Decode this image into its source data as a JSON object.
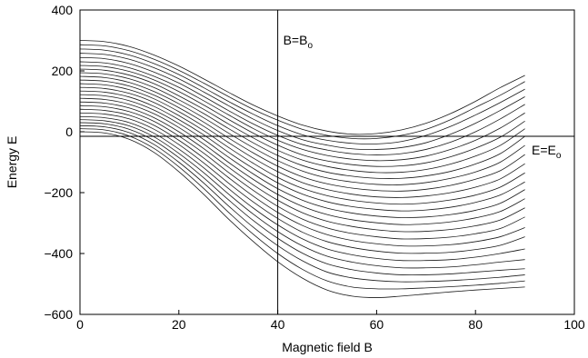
{
  "chart_data": {
    "type": "line",
    "title": "",
    "xlabel": "Magnetic field B",
    "ylabel": "Energy E",
    "xlim": [
      0,
      100
    ],
    "ylim": [
      -600,
      400
    ],
    "xticks": [
      0,
      20,
      40,
      60,
      80,
      100
    ],
    "yticks": [
      -600,
      -400,
      -200,
      0,
      200,
      400
    ],
    "x": [
      0,
      5,
      10,
      15,
      20,
      25,
      30,
      35,
      40,
      45,
      50,
      55,
      60,
      65,
      70,
      75,
      80,
      85,
      90
    ],
    "series": [
      {
        "values": [
          300,
          296,
          280,
          252,
          216,
          174,
          130,
          88,
          52,
          22,
          2,
          -8,
          -6,
          6,
          28,
          60,
          100,
          145,
          185
        ]
      },
      {
        "values": [
          286,
          282,
          266,
          238,
          202,
          160,
          116,
          74,
          38,
          8,
          -12,
          -22,
          -22,
          -12,
          8,
          40,
          80,
          120,
          165
        ]
      },
      {
        "values": [
          272,
          268,
          252,
          224,
          188,
          145,
          100,
          58,
          20,
          -10,
          -28,
          -38,
          -40,
          -32,
          -12,
          18,
          55,
          96,
          140
        ]
      },
      {
        "values": [
          258,
          254,
          238,
          210,
          174,
          131,
          86,
          42,
          4,
          -26,
          -44,
          -56,
          -58,
          -52,
          -36,
          -8,
          28,
          70,
          115
        ]
      },
      {
        "values": [
          244,
          240,
          224,
          196,
          160,
          116,
          70,
          26,
          -12,
          -42,
          -60,
          -72,
          -76,
          -72,
          -58,
          -34,
          0,
          42,
          90
        ]
      },
      {
        "values": [
          230,
          226,
          210,
          182,
          146,
          102,
          56,
          11,
          -28,
          -58,
          -78,
          -90,
          -95,
          -92,
          -80,
          -58,
          -28,
          12,
          62
        ]
      },
      {
        "values": [
          218,
          214,
          198,
          170,
          132,
          88,
          41,
          -4,
          -44,
          -76,
          -96,
          -108,
          -114,
          -112,
          -102,
          -82,
          -54,
          -18,
          35
        ]
      },
      {
        "values": [
          206,
          202,
          186,
          158,
          118,
          74,
          26,
          -20,
          -61,
          -93,
          -114,
          -127,
          -134,
          -133,
          -124,
          -106,
          -80,
          -45,
          10
        ]
      },
      {
        "values": [
          194,
          190,
          174,
          145,
          105,
          60,
          11,
          -36,
          -78,
          -111,
          -133,
          -146,
          -153,
          -153,
          -145,
          -130,
          -106,
          -72,
          -15
        ]
      },
      {
        "values": [
          182,
          178,
          162,
          132,
          92,
          46,
          -4,
          -52,
          -95,
          -129,
          -152,
          -165,
          -173,
          -174,
          -167,
          -153,
          -132,
          -100,
          -45
        ]
      },
      {
        "values": [
          170,
          166,
          150,
          120,
          79,
          32,
          -20,
          -69,
          -113,
          -148,
          -171,
          -185,
          -193,
          -195,
          -189,
          -176,
          -156,
          -128,
          -75
        ]
      },
      {
        "values": [
          158,
          154,
          138,
          108,
          66,
          18,
          -35,
          -86,
          -131,
          -167,
          -190,
          -205,
          -214,
          -216,
          -211,
          -200,
          -182,
          -155,
          -105
        ]
      },
      {
        "values": [
          146,
          142,
          126,
          96,
          53,
          4,
          -51,
          -103,
          -150,
          -186,
          -210,
          -225,
          -234,
          -238,
          -234,
          -224,
          -208,
          -182,
          -135
        ]
      },
      {
        "values": [
          134,
          130,
          114,
          83,
          40,
          -10,
          -67,
          -120,
          -168,
          -205,
          -230,
          -246,
          -255,
          -260,
          -257,
          -248,
          -232,
          -208,
          -165
        ]
      },
      {
        "values": [
          122,
          118,
          102,
          71,
          27,
          -25,
          -83,
          -138,
          -187,
          -225,
          -251,
          -267,
          -277,
          -282,
          -280,
          -272,
          -258,
          -235,
          -190
        ]
      },
      {
        "values": [
          110,
          106,
          90,
          59,
          14,
          -40,
          -100,
          -156,
          -206,
          -245,
          -272,
          -289,
          -299,
          -305,
          -303,
          -296,
          -283,
          -262,
          -220
        ]
      },
      {
        "values": [
          98,
          94,
          78,
          46,
          0,
          -55,
          -116,
          -174,
          -225,
          -266,
          -294,
          -311,
          -322,
          -328,
          -327,
          -321,
          -309,
          -290,
          -250
        ]
      },
      {
        "values": [
          86,
          82,
          66,
          34,
          -14,
          -70,
          -133,
          -192,
          -245,
          -287,
          -316,
          -334,
          -345,
          -352,
          -351,
          -346,
          -335,
          -318,
          -280
        ]
      },
      {
        "values": [
          74,
          70,
          54,
          21,
          -28,
          -86,
          -150,
          -211,
          -265,
          -308,
          -338,
          -357,
          -368,
          -375,
          -375,
          -371,
          -361,
          -345,
          -315
        ]
      },
      {
        "values": [
          62,
          58,
          42,
          8,
          -42,
          -102,
          -168,
          -230,
          -285,
          -330,
          -361,
          -380,
          -392,
          -399,
          -399,
          -396,
          -387,
          -373,
          -345
        ]
      },
      {
        "values": [
          50,
          46,
          30,
          -5,
          -57,
          -118,
          -186,
          -250,
          -306,
          -352,
          -385,
          -404,
          -416,
          -423,
          -423,
          -420,
          -412,
          -400,
          -385
        ]
      },
      {
        "values": [
          40,
          36,
          19,
          -17,
          -71,
          -134,
          -204,
          -270,
          -328,
          -375,
          -409,
          -428,
          -440,
          -447,
          -447,
          -444,
          -437,
          -428,
          -420
        ]
      },
      {
        "values": [
          30,
          26,
          8,
          -29,
          -85,
          -151,
          -223,
          -291,
          -350,
          -399,
          -434,
          -453,
          -464,
          -470,
          -470,
          -467,
          -461,
          -455,
          -450
        ]
      },
      {
        "values": [
          20,
          16,
          -3,
          -42,
          -100,
          -168,
          -243,
          -313,
          -374,
          -424,
          -461,
          -480,
          -489,
          -493,
          -492,
          -489,
          -484,
          -478,
          -470
        ]
      },
      {
        "values": [
          10,
          6,
          -14,
          -55,
          -115,
          -186,
          -264,
          -336,
          -400,
          -452,
          -490,
          -510,
          -516,
          -516,
          -513,
          -509,
          -504,
          -498,
          -490
        ]
      },
      {
        "values": [
          0,
          -4,
          -25,
          -68,
          -131,
          -205,
          -286,
          -360,
          -427,
          -481,
          -520,
          -540,
          -545,
          -540,
          -533,
          -526,
          -520,
          -515,
          -510
        ]
      }
    ],
    "annotations": {
      "vline_x": 40,
      "vline_label_main": "B=B",
      "vline_label_sub": "o",
      "hline_y": -15,
      "hline_label_main": "E=E",
      "hline_label_sub": "o"
    },
    "grid": false,
    "legend": "none"
  }
}
